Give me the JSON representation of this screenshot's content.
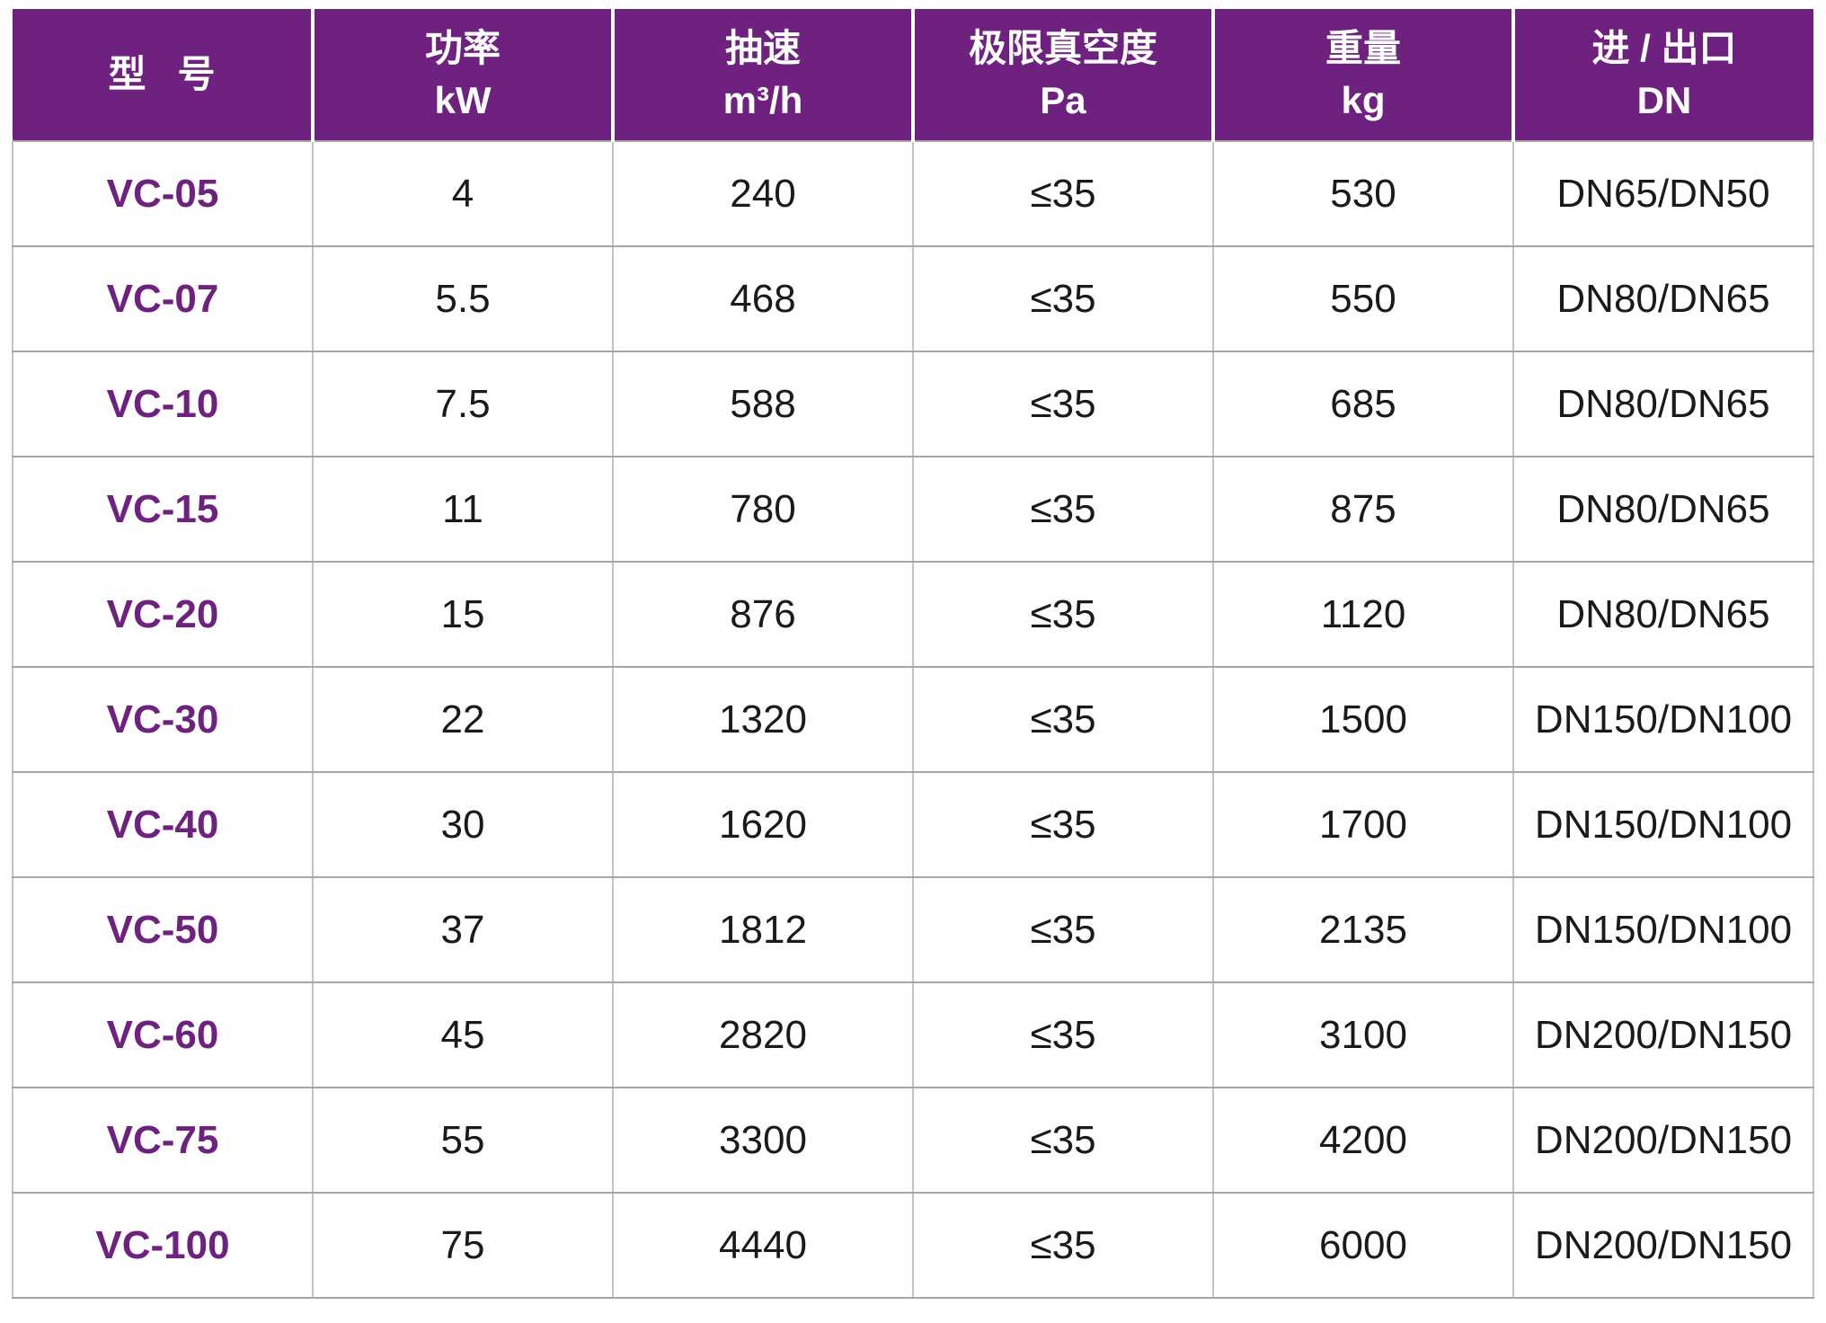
{
  "table": {
    "headers": [
      {
        "text": "型   号"
      },
      {
        "text": "功率\nkW"
      },
      {
        "text": "抽速\nm³/h"
      },
      {
        "text": "极限真空度\nPa"
      },
      {
        "text": "重量\nkg"
      },
      {
        "text": "进 / 出口\nDN"
      }
    ],
    "rows": [
      {
        "model": "VC-05",
        "power": "4",
        "speed": "240",
        "vacuum": "≤35",
        "weight": "530",
        "ports": "DN65/DN50"
      },
      {
        "model": "VC-07",
        "power": "5.5",
        "speed": "468",
        "vacuum": "≤35",
        "weight": "550",
        "ports": "DN80/DN65"
      },
      {
        "model": "VC-10",
        "power": "7.5",
        "speed": "588",
        "vacuum": "≤35",
        "weight": "685",
        "ports": "DN80/DN65"
      },
      {
        "model": "VC-15",
        "power": "11",
        "speed": "780",
        "vacuum": "≤35",
        "weight": "875",
        "ports": "DN80/DN65"
      },
      {
        "model": "VC-20",
        "power": "15",
        "speed": "876",
        "vacuum": "≤35",
        "weight": "1120",
        "ports": "DN80/DN65"
      },
      {
        "model": "VC-30",
        "power": "22",
        "speed": "1320",
        "vacuum": "≤35",
        "weight": "1500",
        "ports": "DN150/DN100"
      },
      {
        "model": "VC-40",
        "power": "30",
        "speed": "1620",
        "vacuum": "≤35",
        "weight": "1700",
        "ports": "DN150/DN100"
      },
      {
        "model": "VC-50",
        "power": "37",
        "speed": "1812",
        "vacuum": "≤35",
        "weight": "2135",
        "ports": "DN150/DN100"
      },
      {
        "model": "VC-60",
        "power": "45",
        "speed": "2820",
        "vacuum": "≤35",
        "weight": "3100",
        "ports": "DN200/DN150"
      },
      {
        "model": "VC-75",
        "power": "55",
        "speed": "3300",
        "vacuum": "≤35",
        "weight": "4200",
        "ports": "DN200/DN150"
      },
      {
        "model": "VC-100",
        "power": "75",
        "speed": "4440",
        "vacuum": "≤35",
        "weight": "6000",
        "ports": "DN200/DN150"
      }
    ]
  },
  "colors": {
    "header_bg": "#6F2180",
    "header_text": "#FFFFFF",
    "model_text": "#6F2180",
    "body_text": "#1A1A1A",
    "row_border": "#A6A6A6",
    "column_border": "#C3C3C3",
    "header_gap": "#FFFFFF"
  }
}
